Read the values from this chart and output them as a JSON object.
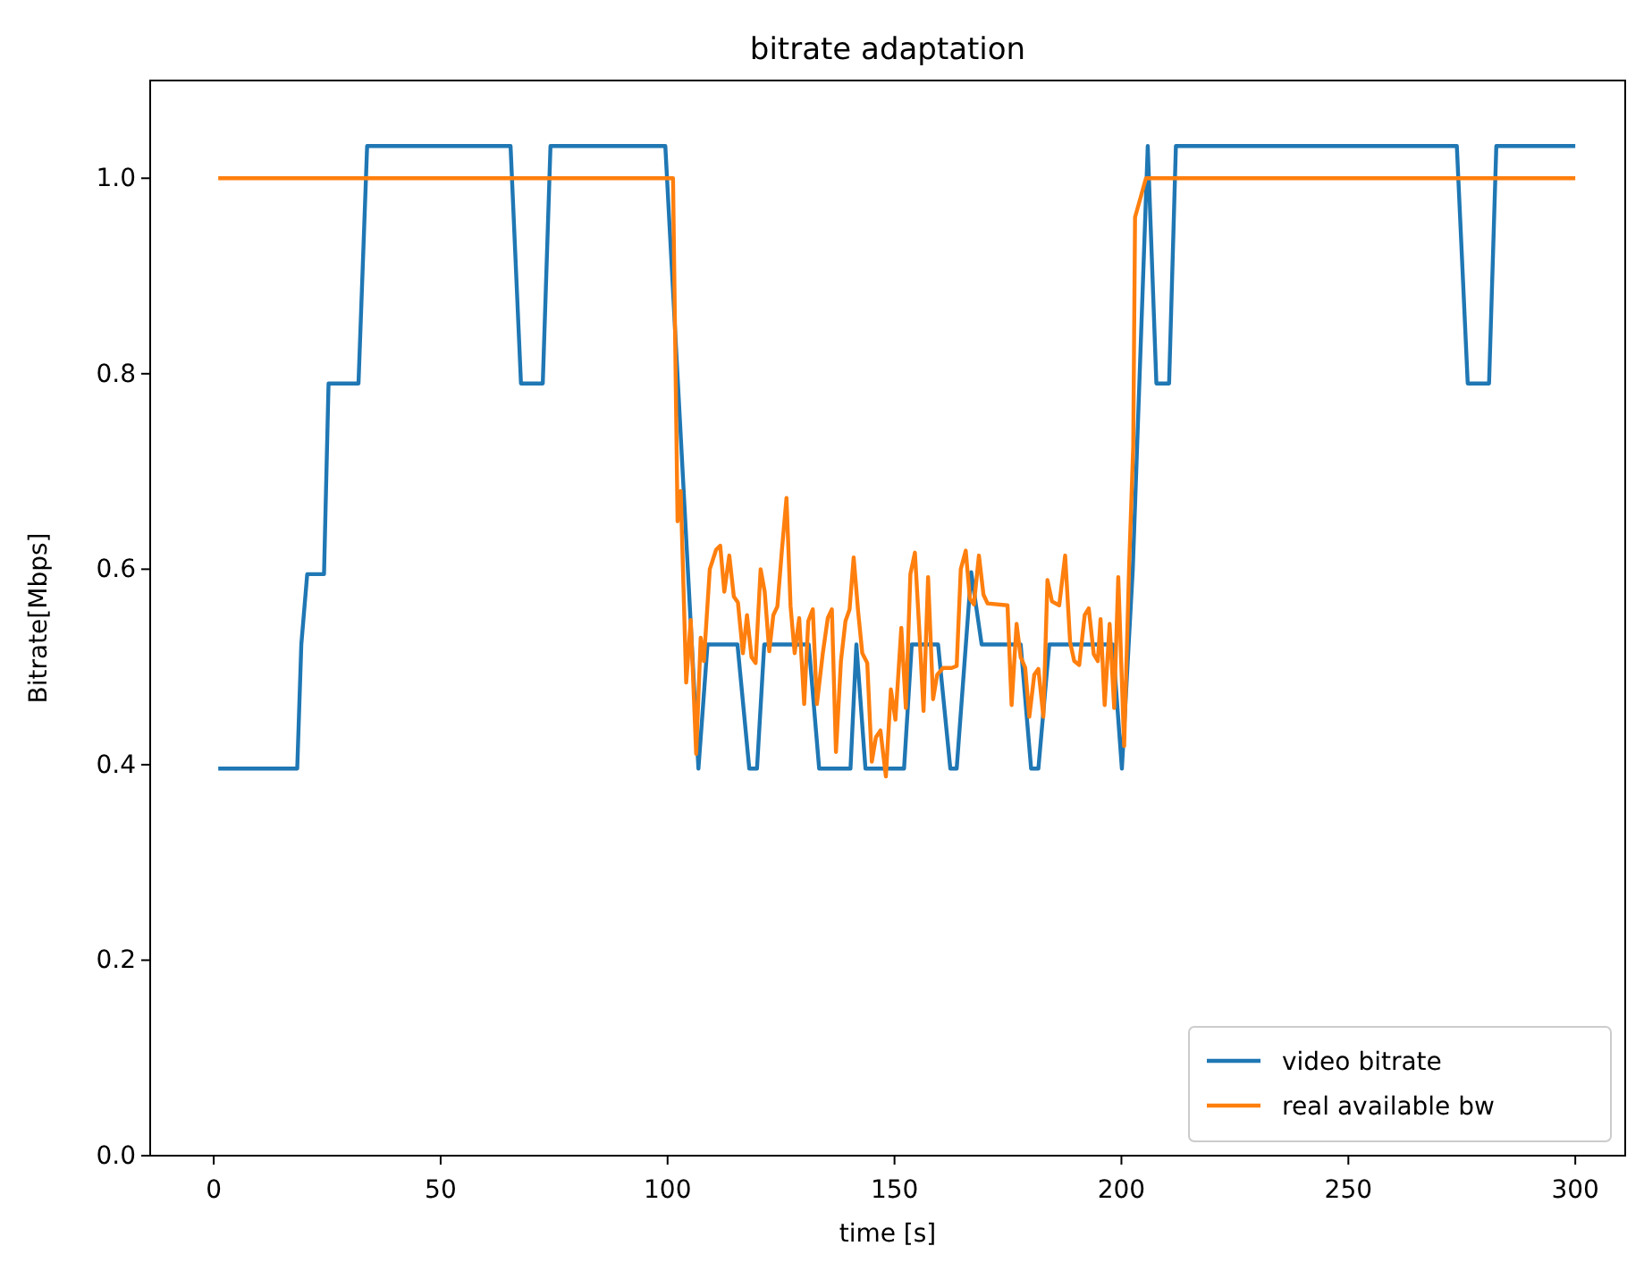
{
  "chart_data": {
    "type": "line",
    "title": "bitrate adaptation",
    "xlabel": "time [s]",
    "ylabel": "Bitrate[Mbps]",
    "xlim": [
      -14,
      311
    ],
    "ylim": [
      0,
      1.1
    ],
    "xticks": [
      0,
      50,
      100,
      150,
      200,
      250,
      300
    ],
    "yticks": [
      {
        "value": 0,
        "label": "0.0"
      },
      {
        "value": 0.2,
        "label": "0.2"
      },
      {
        "value": 0.4,
        "label": "0.4"
      },
      {
        "value": 0.6,
        "label": "0.6"
      },
      {
        "value": 0.8,
        "label": "0.8"
      },
      {
        "value": 1,
        "label": "1.0"
      }
    ],
    "grid": false,
    "legend": "bottom right",
    "marker": "none",
    "line_style": "solid",
    "series": [
      {
        "name": "video bitrate",
        "color": "#1f77b4",
        "x": [
          1,
          18.4,
          19.3,
          20.6,
          24.3,
          25.3,
          31.9,
          33.8,
          65.4,
          67.7,
          72.5,
          74.2,
          99.5,
          106.8,
          108.8,
          115.4,
          118,
          119.7,
          121.3,
          131.1,
          133.4,
          140.3,
          141.6,
          143.6,
          152.1,
          153.8,
          159.6,
          162.3,
          163.7,
          166.9,
          169.2,
          177.8,
          180.1,
          181.7,
          184.1,
          198.1,
          200.1,
          202.5,
          205.8,
          207.7,
          210.5,
          212,
          273.9,
          276.3,
          281,
          282.6,
          300
        ],
        "values": [
          0.396,
          0.396,
          0.523,
          0.595,
          0.595,
          0.79,
          0.79,
          1.033,
          1.033,
          0.79,
          0.79,
          1.033,
          1.033,
          0.396,
          0.523,
          0.523,
          0.396,
          0.396,
          0.523,
          0.523,
          0.396,
          0.396,
          0.523,
          0.396,
          0.396,
          0.523,
          0.523,
          0.396,
          0.396,
          0.597,
          0.523,
          0.523,
          0.396,
          0.396,
          0.523,
          0.523,
          0.396,
          0.6,
          1.033,
          0.79,
          0.79,
          1.033,
          1.033,
          0.79,
          0.79,
          1.033,
          1.033
        ]
      },
      {
        "name": "real available bw",
        "color": "#ff7f0e",
        "x": [
          1,
          101.2,
          102.2,
          102.9,
          104.1,
          105.1,
          106.3,
          107.3,
          108,
          109.3,
          110.7,
          111.6,
          112.5,
          113.6,
          114.6,
          115.5,
          116.6,
          117.5,
          118.5,
          119.4,
          120.5,
          121.4,
          122.4,
          123.3,
          124.2,
          125.2,
          126.2,
          127.1,
          128,
          129,
          130.1,
          131,
          132,
          132.9,
          134.2,
          135.3,
          136.2,
          137.1,
          138.2,
          139.2,
          140.1,
          141,
          142,
          142.9,
          144,
          145,
          145.9,
          146.9,
          148.1,
          149.2,
          150.2,
          151.5,
          152.5,
          153.5,
          154.5,
          155.4,
          156.4,
          157.4,
          158.5,
          159.4,
          160.7,
          162.6,
          163.7,
          164.6,
          165.7,
          166.6,
          167.5,
          168.6,
          169.6,
          170.5,
          174.9,
          175.8,
          176.9,
          177.8,
          178.8,
          179.7,
          180.8,
          181.7,
          182.8,
          183.7,
          184.7,
          186.3,
          187.6,
          188.7,
          189.6,
          190.7,
          191.9,
          192.8,
          193.9,
          194.8,
          195.4,
          196.3,
          197.4,
          198.4,
          199.3,
          200.6,
          201.7,
          202.6,
          203,
          205.4,
          300
        ],
        "values": [
          1,
          1,
          0.649,
          0.68,
          0.484,
          0.548,
          0.411,
          0.53,
          0.506,
          0.6,
          0.62,
          0.624,
          0.577,
          0.614,
          0.572,
          0.566,
          0.514,
          0.553,
          0.51,
          0.504,
          0.6,
          0.577,
          0.516,
          0.553,
          0.562,
          0.62,
          0.673,
          0.562,
          0.514,
          0.55,
          0.462,
          0.547,
          0.559,
          0.462,
          0.514,
          0.55,
          0.559,
          0.413,
          0.506,
          0.547,
          0.559,
          0.612,
          0.556,
          0.514,
          0.504,
          0.403,
          0.428,
          0.435,
          0.388,
          0.477,
          0.446,
          0.54,
          0.458,
          0.595,
          0.617,
          0.543,
          0.455,
          0.592,
          0.467,
          0.492,
          0.499,
          0.499,
          0.501,
          0.6,
          0.619,
          0.57,
          0.564,
          0.614,
          0.574,
          0.565,
          0.563,
          0.461,
          0.544,
          0.51,
          0.499,
          0.449,
          0.492,
          0.498,
          0.449,
          0.589,
          0.567,
          0.563,
          0.614,
          0.525,
          0.506,
          0.502,
          0.553,
          0.56,
          0.513,
          0.506,
          0.549,
          0.461,
          0.544,
          0.458,
          0.592,
          0.419,
          0.604,
          0.726,
          0.96,
          1,
          1
        ]
      }
    ]
  }
}
